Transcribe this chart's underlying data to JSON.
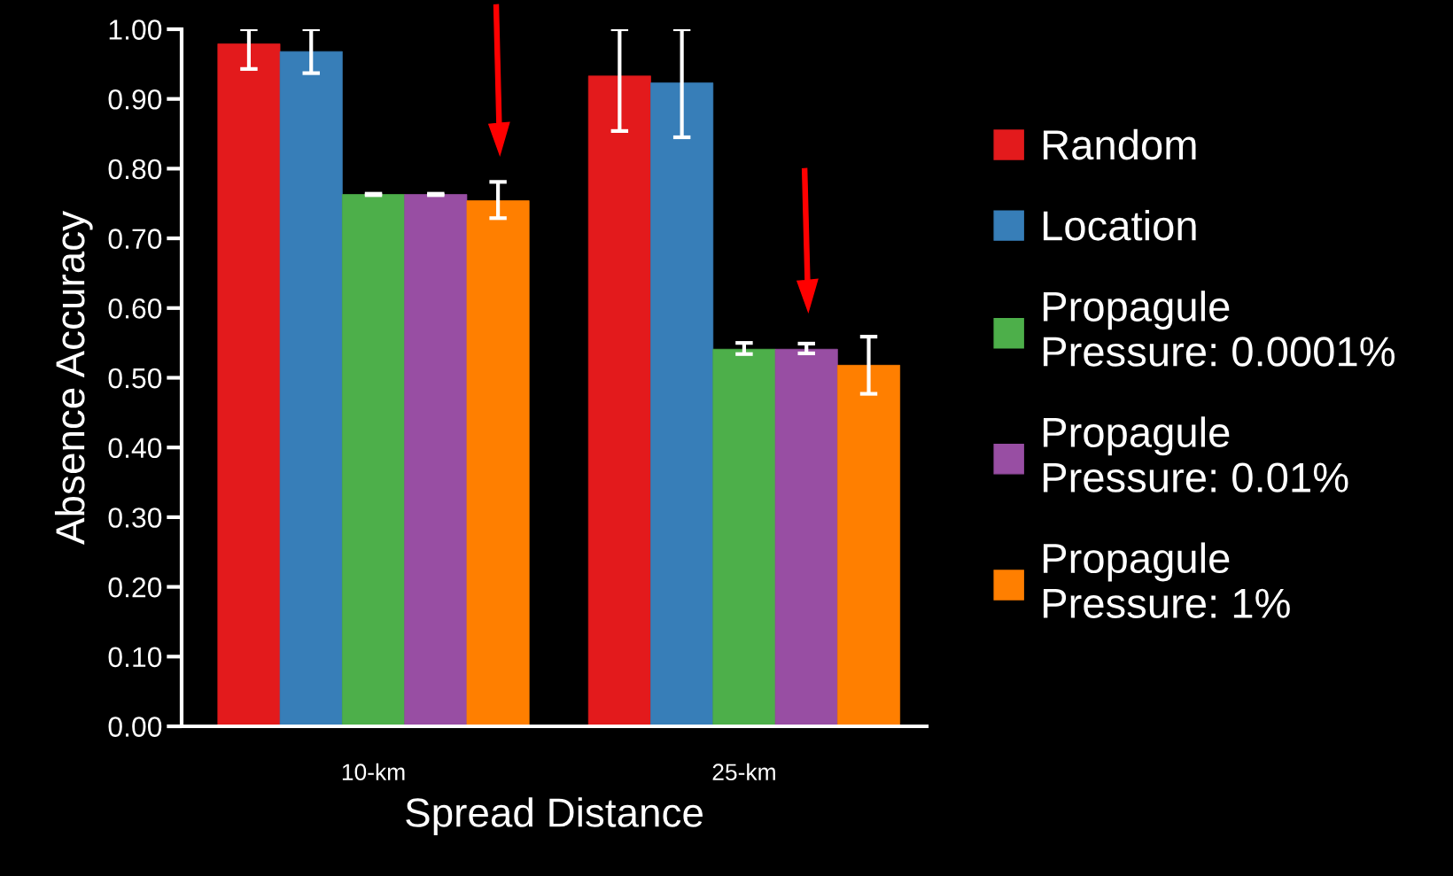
{
  "chart_data": {
    "type": "bar",
    "xlabel": "Spread Distance",
    "ylabel": "Absence Accuracy",
    "categories": [
      "10-km",
      "25-km"
    ],
    "series": [
      {
        "name": "Random",
        "color": "#e31a1c",
        "values": [
          0.979,
          0.933
        ],
        "errors": [
          [
            0.943,
            1.0
          ],
          [
            0.854,
            1.0
          ]
        ]
      },
      {
        "name": "Location",
        "color": "#377eb8",
        "values": [
          0.968,
          0.923
        ],
        "errors": [
          [
            0.937,
            1.0
          ],
          [
            0.845,
            1.0
          ]
        ]
      },
      {
        "name": "Propagule\nPressure: 0.0001%",
        "color": "#4daf4a",
        "values": [
          0.763,
          0.541
        ],
        "errors": [
          [
            0.762,
            0.764
          ],
          [
            0.534,
            0.55
          ]
        ]
      },
      {
        "name": "Propagule\nPressure: 0.01%",
        "color": "#984ea3",
        "values": [
          0.763,
          0.541
        ],
        "errors": [
          [
            0.762,
            0.764
          ],
          [
            0.535,
            0.549
          ]
        ]
      },
      {
        "name": "Propagule\nPressure: 1%",
        "color": "#ff7f00",
        "values": [
          0.754,
          0.518
        ],
        "errors": [
          [
            0.729,
            0.781
          ],
          [
            0.477,
            0.559
          ]
        ]
      }
    ],
    "ylim": [
      0,
      1
    ],
    "yticks": [
      {
        "value": 0,
        "label": "0.00"
      },
      {
        "value": 0.1,
        "label": "0.10"
      },
      {
        "value": 0.2,
        "label": "0.20"
      },
      {
        "value": 0.3,
        "label": "0.30"
      },
      {
        "value": 0.4,
        "label": "0.40"
      },
      {
        "value": 0.5,
        "label": "0.50"
      },
      {
        "value": 0.6,
        "label": "0.60"
      },
      {
        "value": 0.7,
        "label": "0.70"
      },
      {
        "value": 0.8,
        "label": "0.80"
      },
      {
        "value": 0.9,
        "label": "0.90"
      },
      {
        "value": 1,
        "label": "1.00"
      }
    ],
    "grid": false,
    "legend": "right"
  }
}
